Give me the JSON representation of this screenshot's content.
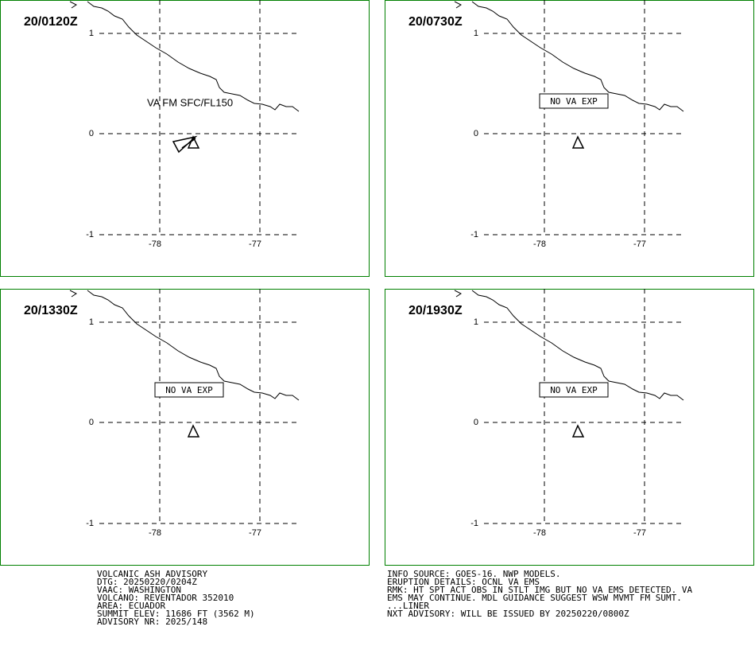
{
  "grid": {
    "lat": [
      "1",
      "0",
      "-1"
    ],
    "lon": [
      "-78",
      "-77"
    ]
  },
  "panels": [
    {
      "time": "20/0120Z",
      "annotation": "VA FM SFC/FL150",
      "boxed": false
    },
    {
      "time": "20/0730Z",
      "annotation": "NO VA EXP",
      "boxed": true
    },
    {
      "time": "20/1330Z",
      "annotation": "NO VA EXP",
      "boxed": true
    },
    {
      "time": "20/1930Z",
      "annotation": "NO VA EXP",
      "boxed": true
    }
  ],
  "advisory_left": [
    "VOLCANIC ASH ADVISORY",
    "DTG: 20250220/0204Z",
    "VAAC: WASHINGTON",
    "VOLCANO: REVENTADOR 352010",
    "AREA: ECUADOR",
    "SUMMIT ELEV: 11686 FT (3562 M)",
    "ADVISORY NR: 2025/148"
  ],
  "advisory_right": [
    "INFO SOURCE: GOES-16. NWP MODELS.",
    "ERUPTION DETAILS: OCNL VA EMS",
    "RMK: HT SPT ACT OBS IN STLT IMG BUT NO VA EMS DETECTED. VA",
    "EMS MAY CONTINUE. MDL GUIDANCE SUGGEST WSW MVMT FM SUMT.",
    "...LINER",
    "NXT ADVISORY: WILL BE ISSUED BY 20250220/0800Z"
  ]
}
